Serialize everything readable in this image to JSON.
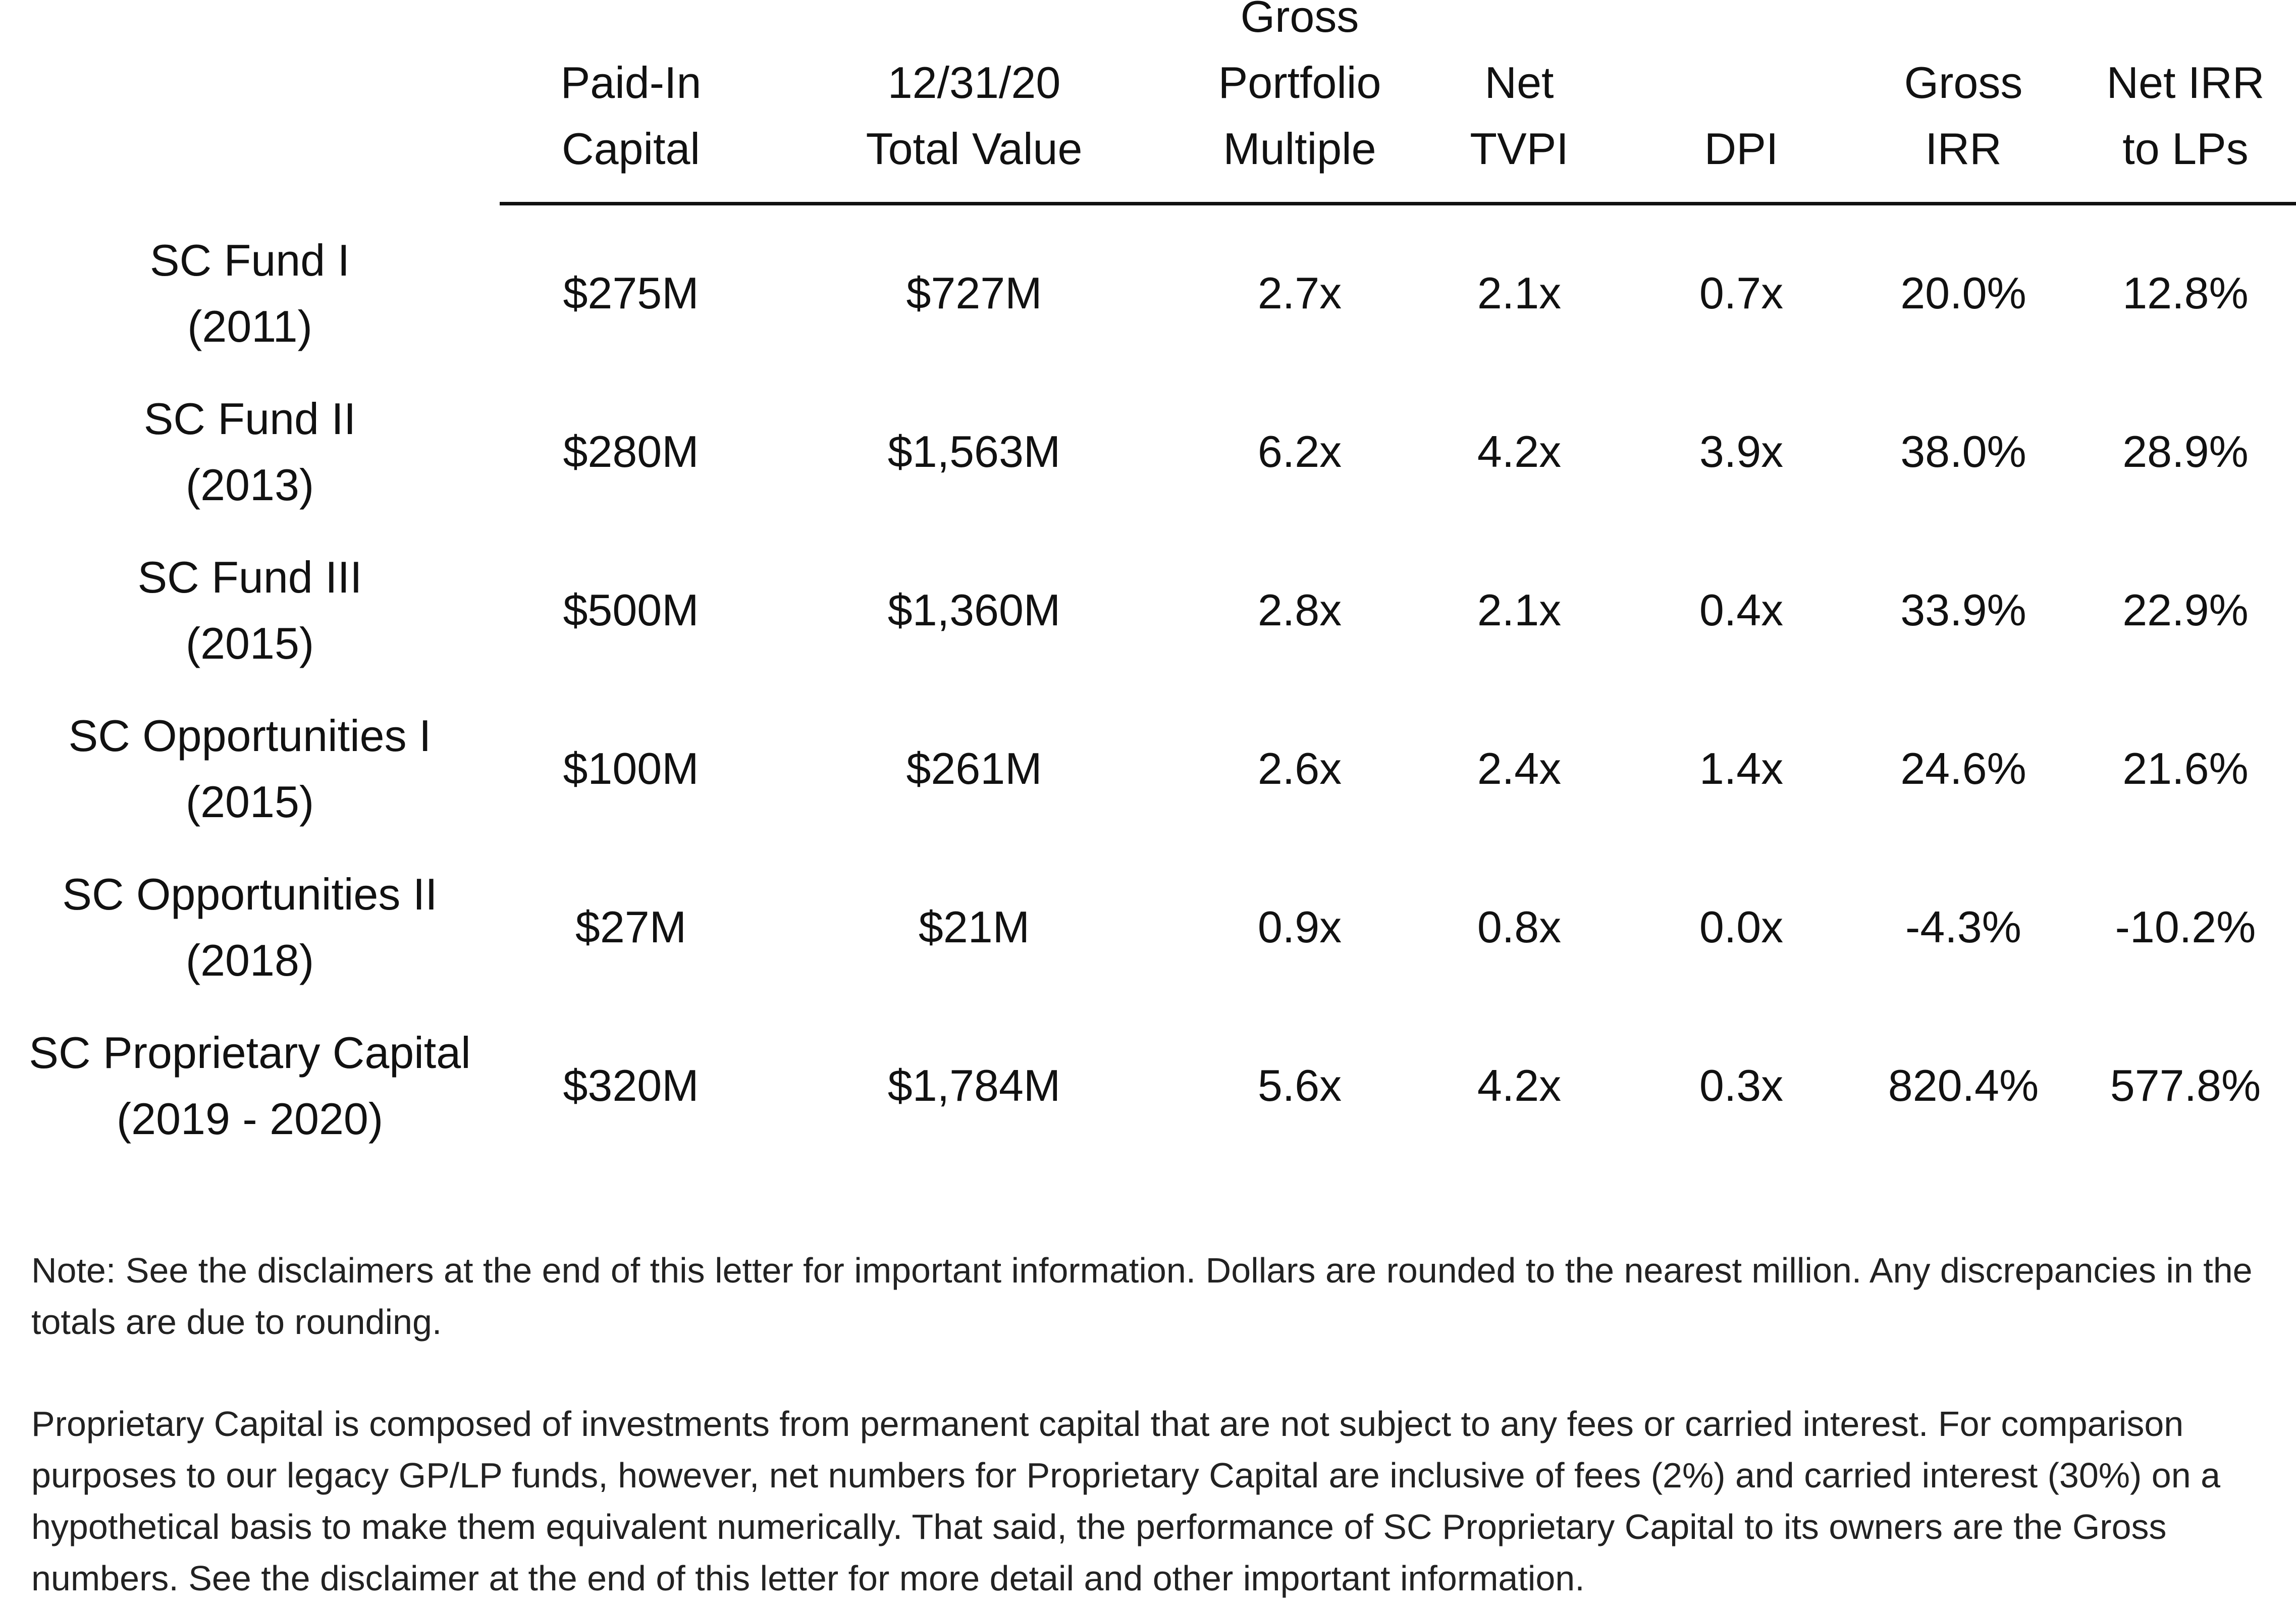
{
  "table": {
    "columns": [
      {
        "key": "paid_in",
        "lines": [
          "Paid-In",
          "Capital"
        ]
      },
      {
        "key": "total_value",
        "lines": [
          "12/31/20",
          "Total Value"
        ]
      },
      {
        "key": "gross_multiple",
        "lines": [
          "Gross",
          "Portfolio",
          "Multiple"
        ]
      },
      {
        "key": "net_tvpi",
        "lines": [
          "Net",
          "TVPI"
        ]
      },
      {
        "key": "dpi",
        "lines": [
          "DPI"
        ]
      },
      {
        "key": "gross_irr",
        "lines": [
          "Gross",
          "IRR"
        ]
      },
      {
        "key": "net_irr",
        "lines": [
          "Net IRR",
          "to LPs"
        ]
      }
    ],
    "rows": [
      {
        "name": "SC Fund I",
        "years": "(2011)",
        "values": [
          "$275M",
          "$727M",
          "2.7x",
          "2.1x",
          "0.7x",
          "20.0%",
          "12.8%"
        ]
      },
      {
        "name": "SC Fund II",
        "years": "(2013)",
        "values": [
          "$280M",
          "$1,563M",
          "6.2x",
          "4.2x",
          "3.9x",
          "38.0%",
          "28.9%"
        ]
      },
      {
        "name": "SC Fund III",
        "years": "(2015)",
        "values": [
          "$500M",
          "$1,360M",
          "2.8x",
          "2.1x",
          "0.4x",
          "33.9%",
          "22.9%"
        ]
      },
      {
        "name": "SC Opportunities I",
        "years": "(2015)",
        "values": [
          "$100M",
          "$261M",
          "2.6x",
          "2.4x",
          "1.4x",
          "24.6%",
          "21.6%"
        ]
      },
      {
        "name": "SC Opportunities II",
        "years": "(2018)",
        "values": [
          "$27M",
          "$21M",
          "0.9x",
          "0.8x",
          "0.0x",
          "-4.3%",
          "-10.2%"
        ]
      },
      {
        "name": "SC Proprietary Capital",
        "years": "(2019 - 2020)",
        "values": [
          "$320M",
          "$1,784M",
          "5.6x",
          "4.2x",
          "0.3x",
          "820.4%",
          "577.8%"
        ]
      }
    ]
  },
  "notes": {
    "note": "Note: See the disclaimers at the end of this letter for important information. Dollars are rounded to the nearest million. Any discrepancies in the totals are due to rounding.",
    "proprietary": "Proprietary Capital is composed of investments from permanent capital that are not subject to any fees or carried interest. For comparison purposes to our legacy GP/LP funds, however, net numbers for Proprietary Capital are inclusive of fees (2%) and carried interest (30%) on a hypothetical basis to make them equivalent numerically.  That said, the performance of SC Proprietary Capital to its owners are the Gross numbers. See the disclaimer at the end of this letter for more detail and other important information."
  }
}
